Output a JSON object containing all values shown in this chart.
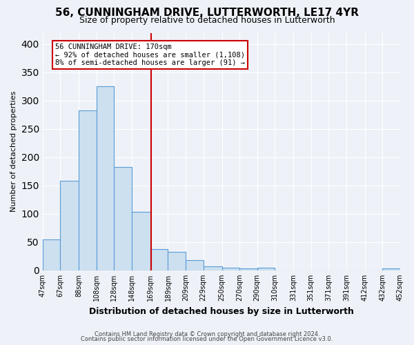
{
  "title": "56, CUNNINGHAM DRIVE, LUTTERWORTH, LE17 4YR",
  "subtitle": "Size of property relative to detached houses in Lutterworth",
  "xlabel": "Distribution of detached houses by size in Lutterworth",
  "ylabel": "Number of detached properties",
  "footnote1": "Contains HM Land Registry data © Crown copyright and database right 2024.",
  "footnote2": "Contains public sector information licensed under the Open Government Licence v3.0.",
  "bar_edges": [
    47,
    67,
    88,
    108,
    128,
    148,
    169,
    189,
    209,
    229,
    250,
    270,
    290,
    310,
    331,
    351,
    371,
    391,
    412,
    432,
    452
  ],
  "bar_heights": [
    55,
    159,
    283,
    325,
    183,
    103,
    38,
    33,
    18,
    7,
    5,
    3,
    5,
    0,
    0,
    0,
    0,
    0,
    0,
    3
  ],
  "bar_color": "#cce0f0",
  "bar_edge_color": "#5b9bd5",
  "vline_x": 170,
  "vline_color": "#cc0000",
  "annotation_line1": "56 CUNNINGHAM DRIVE: 170sqm",
  "annotation_line2": "← 92% of detached houses are smaller (1,108)",
  "annotation_line3": "8% of semi-detached houses are larger (91) →",
  "annotation_box_color": "#ffffff",
  "annotation_box_edge_color": "#cc0000",
  "ylim": [
    0,
    420
  ],
  "background_color": "#eef2f8",
  "axes_background_color": "#eef2f8",
  "grid_color": "#ffffff",
  "tick_labels": [
    "47sqm",
    "67sqm",
    "88sqm",
    "108sqm",
    "128sqm",
    "148sqm",
    "169sqm",
    "189sqm",
    "209sqm",
    "229sqm",
    "250sqm",
    "270sqm",
    "290sqm",
    "310sqm",
    "331sqm",
    "351sqm",
    "371sqm",
    "391sqm",
    "412sqm",
    "432sqm",
    "452sqm"
  ],
  "title_fontsize": 11,
  "subtitle_fontsize": 9,
  "ylabel_fontsize": 8,
  "xlabel_fontsize": 9,
  "footnote_fontsize": 6,
  "annotation_fontsize": 7.5
}
